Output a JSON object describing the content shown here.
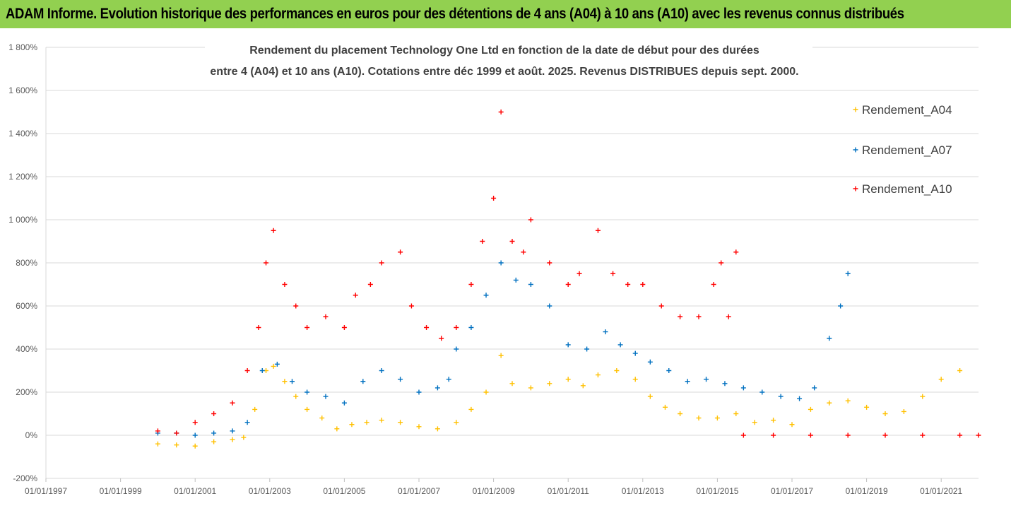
{
  "banner": {
    "title": "ADAM Informe. Evolution historique des performances en euros pour des détentions de 4 ans (A04) à 10 ans (A10) avec les revenus connus distribués",
    "background": "#92d050"
  },
  "chart_data": {
    "type": "scatter",
    "title_line1": "Rendement du placement Technology One Ltd en fonction de la date de début pour des durées",
    "title_line2": "entre 4 (A04) et 10 ans (A10). Cotations entre déc 1999 et août. 2025. Revenus DISTRIBUES depuis sept. 2000.",
    "xlabel": "",
    "ylabel": "",
    "x_tick_labels": [
      "01/01/1997",
      "01/01/1999",
      "01/01/2001",
      "01/01/2003",
      "01/01/2005",
      "01/01/2007",
      "01/01/2009",
      "01/01/2011",
      "01/01/2013",
      "01/01/2015",
      "01/01/2017",
      "01/01/2019",
      "01/01/2021"
    ],
    "x_range": [
      "01/01/1997",
      "01/01/2022"
    ],
    "y_tick_labels": [
      "1 800%",
      "1 600%",
      "1 400%",
      "1 200%",
      "1 000%",
      "800%",
      "600%",
      "400%",
      "200%",
      "0%",
      "-200%"
    ],
    "ylim": [
      -200,
      1800
    ],
    "grid": "horizontal",
    "legend_position": "right",
    "marker": "+",
    "series": [
      {
        "name": "Rendement_A04",
        "color": "#ffc000",
        "points": [
          [
            2000.0,
            -40
          ],
          [
            2000.5,
            -45
          ],
          [
            2001.0,
            -50
          ],
          [
            2001.5,
            -30
          ],
          [
            2002.0,
            -20
          ],
          [
            2002.3,
            -10
          ],
          [
            2002.6,
            120
          ],
          [
            2002.9,
            300
          ],
          [
            2003.1,
            320
          ],
          [
            2003.4,
            250
          ],
          [
            2003.7,
            180
          ],
          [
            2004.0,
            120
          ],
          [
            2004.4,
            80
          ],
          [
            2004.8,
            30
          ],
          [
            2005.2,
            50
          ],
          [
            2005.6,
            60
          ],
          [
            2006.0,
            70
          ],
          [
            2006.5,
            60
          ],
          [
            2007.0,
            40
          ],
          [
            2007.5,
            30
          ],
          [
            2008.0,
            60
          ],
          [
            2008.4,
            120
          ],
          [
            2008.8,
            200
          ],
          [
            2009.2,
            370
          ],
          [
            2009.5,
            240
          ],
          [
            2010.0,
            220
          ],
          [
            2010.5,
            240
          ],
          [
            2011.0,
            260
          ],
          [
            2011.4,
            230
          ],
          [
            2011.8,
            280
          ],
          [
            2012.3,
            300
          ],
          [
            2012.8,
            260
          ],
          [
            2013.2,
            180
          ],
          [
            2013.6,
            130
          ],
          [
            2014.0,
            100
          ],
          [
            2014.5,
            80
          ],
          [
            2015.0,
            80
          ],
          [
            2015.5,
            100
          ],
          [
            2016.0,
            60
          ],
          [
            2016.5,
            70
          ],
          [
            2017.0,
            50
          ],
          [
            2017.5,
            120
          ],
          [
            2018.0,
            150
          ],
          [
            2018.5,
            160
          ],
          [
            2019.0,
            130
          ],
          [
            2019.5,
            100
          ],
          [
            2020.0,
            110
          ],
          [
            2020.5,
            180
          ],
          [
            2021.0,
            260
          ],
          [
            2021.5,
            300
          ]
        ]
      },
      {
        "name": "Rendement_A07",
        "color": "#0070c0",
        "points": [
          [
            2000.0,
            10
          ],
          [
            2000.5,
            10
          ],
          [
            2001.0,
            0
          ],
          [
            2001.5,
            10
          ],
          [
            2002.0,
            20
          ],
          [
            2002.4,
            60
          ],
          [
            2002.8,
            300
          ],
          [
            2003.2,
            330
          ],
          [
            2003.6,
            250
          ],
          [
            2004.0,
            200
          ],
          [
            2004.5,
            180
          ],
          [
            2005.0,
            150
          ],
          [
            2005.5,
            250
          ],
          [
            2006.0,
            300
          ],
          [
            2006.5,
            260
          ],
          [
            2007.0,
            200
          ],
          [
            2007.5,
            220
          ],
          [
            2007.8,
            260
          ],
          [
            2008.0,
            400
          ],
          [
            2008.4,
            500
          ],
          [
            2008.8,
            650
          ],
          [
            2009.2,
            800
          ],
          [
            2009.6,
            720
          ],
          [
            2010.0,
            700
          ],
          [
            2010.5,
            600
          ],
          [
            2011.0,
            420
          ],
          [
            2011.5,
            400
          ],
          [
            2012.0,
            480
          ],
          [
            2012.4,
            420
          ],
          [
            2012.8,
            380
          ],
          [
            2013.2,
            340
          ],
          [
            2013.7,
            300
          ],
          [
            2014.2,
            250
          ],
          [
            2014.7,
            260
          ],
          [
            2015.2,
            240
          ],
          [
            2015.7,
            220
          ],
          [
            2016.2,
            200
          ],
          [
            2016.7,
            180
          ],
          [
            2017.2,
            170
          ],
          [
            2017.6,
            220
          ],
          [
            2018.0,
            450
          ],
          [
            2018.3,
            600
          ],
          [
            2018.5,
            750
          ]
        ]
      },
      {
        "name": "Rendement_A10",
        "color": "#ff0000",
        "points": [
          [
            2000.0,
            20
          ],
          [
            2000.5,
            10
          ],
          [
            2001.0,
            60
          ],
          [
            2001.5,
            100
          ],
          [
            2002.0,
            150
          ],
          [
            2002.4,
            300
          ],
          [
            2002.7,
            500
          ],
          [
            2002.9,
            800
          ],
          [
            2003.1,
            950
          ],
          [
            2003.4,
            700
          ],
          [
            2003.7,
            600
          ],
          [
            2004.0,
            500
          ],
          [
            2004.5,
            550
          ],
          [
            2005.0,
            500
          ],
          [
            2005.3,
            650
          ],
          [
            2005.7,
            700
          ],
          [
            2006.0,
            800
          ],
          [
            2006.5,
            850
          ],
          [
            2006.8,
            600
          ],
          [
            2007.2,
            500
          ],
          [
            2007.6,
            450
          ],
          [
            2008.0,
            500
          ],
          [
            2008.4,
            700
          ],
          [
            2008.7,
            900
          ],
          [
            2009.0,
            1100
          ],
          [
            2009.2,
            1500
          ],
          [
            2009.5,
            900
          ],
          [
            2009.8,
            850
          ],
          [
            2010.0,
            1000
          ],
          [
            2010.5,
            800
          ],
          [
            2011.0,
            700
          ],
          [
            2011.3,
            750
          ],
          [
            2011.8,
            950
          ],
          [
            2012.2,
            750
          ],
          [
            2012.6,
            700
          ],
          [
            2013.0,
            700
          ],
          [
            2013.5,
            600
          ],
          [
            2014.0,
            550
          ],
          [
            2014.5,
            550
          ],
          [
            2014.9,
            700
          ],
          [
            2015.1,
            800
          ],
          [
            2015.3,
            550
          ],
          [
            2015.5,
            850
          ],
          [
            2015.7,
            0
          ],
          [
            2016.5,
            0
          ],
          [
            2017.5,
            0
          ],
          [
            2018.5,
            0
          ],
          [
            2019.5,
            0
          ],
          [
            2020.5,
            0
          ],
          [
            2021.5,
            0
          ],
          [
            2022.0,
            0
          ]
        ]
      }
    ]
  }
}
